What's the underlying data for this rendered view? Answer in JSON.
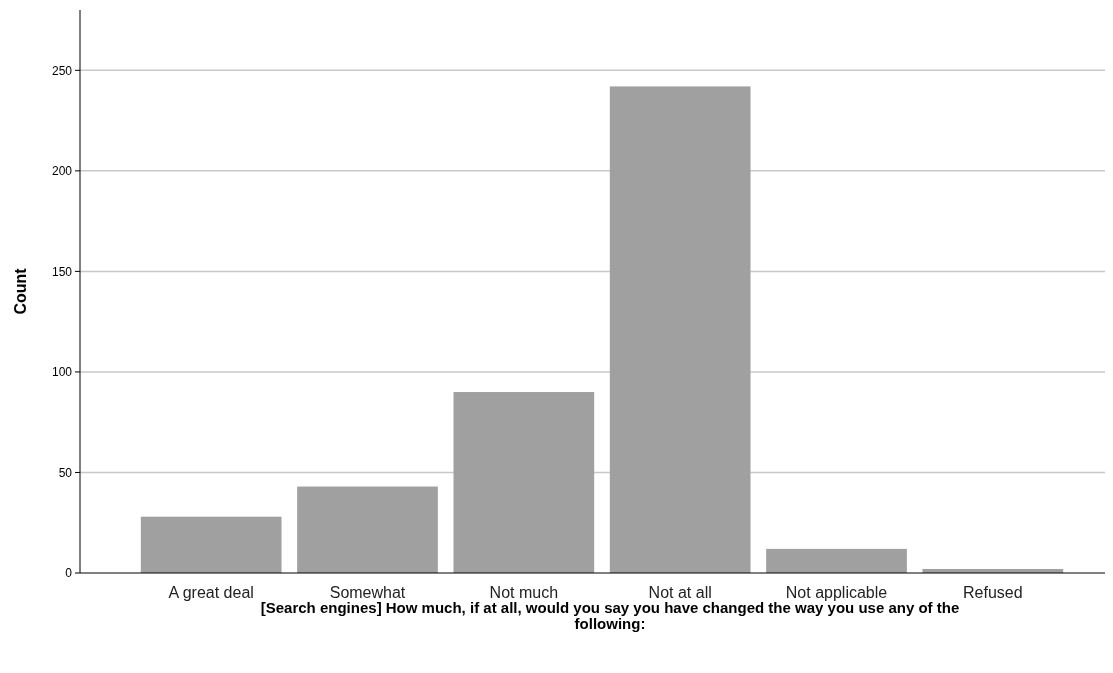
{
  "chart_data": {
    "type": "bar",
    "xlabel": "[Search engines] How much, if at all, would you say you have changed the way you use any of the following:",
    "ylabel": "Count",
    "categories": [
      "A great deal",
      "Somewhat",
      "Not much",
      "Not at all",
      "Not applicable",
      "Refused"
    ],
    "values": [
      28,
      43,
      90,
      242,
      12,
      2
    ],
    "color": "#a0a0a0",
    "ylim": [
      0,
      280
    ],
    "yticks": [
      0,
      50,
      100,
      150,
      200,
      250
    ],
    "grid": "y"
  }
}
